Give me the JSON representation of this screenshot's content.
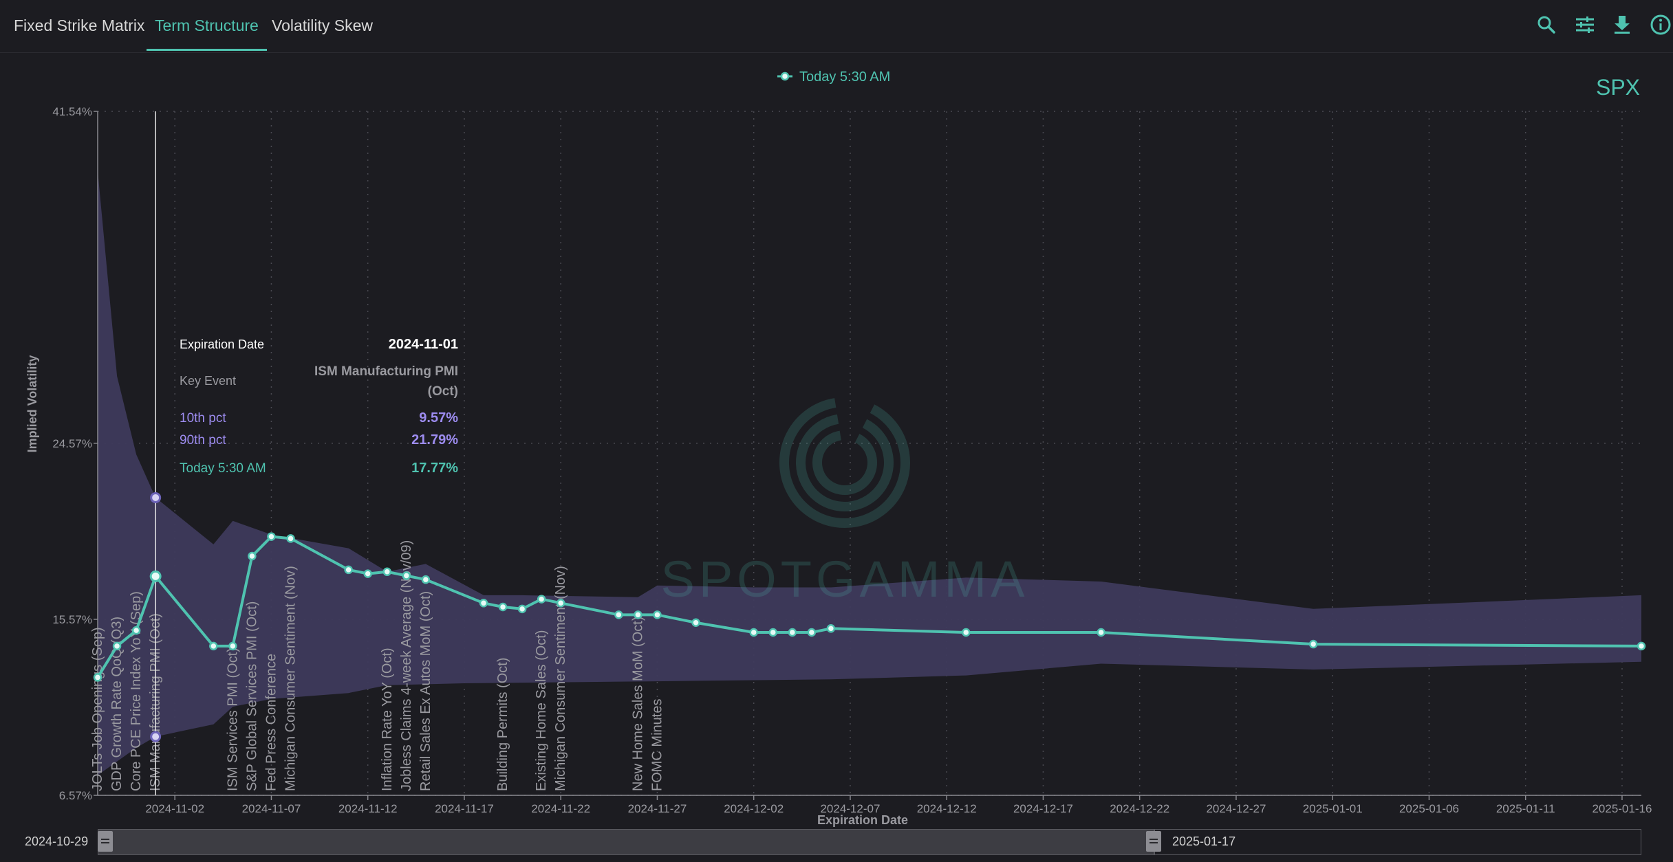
{
  "tabs": [
    {
      "label": "Fixed Strike Matrix",
      "active": false
    },
    {
      "label": "Term Structure",
      "active": true
    },
    {
      "label": "Volatility Skew",
      "active": false
    }
  ],
  "toolbar_icons": [
    "search-icon",
    "sliders-icon",
    "download-icon",
    "info-icon"
  ],
  "colors": {
    "accent": "#4fc3b0",
    "band": "#3e3a5c",
    "band_label": "#9d8cf0",
    "background": "#1c1c21"
  },
  "chart_data": {
    "type": "line",
    "ticker": "SPX",
    "legend": {
      "label": "Today 5:30 AM",
      "position": "top-center"
    },
    "xlabel": "Expiration Date",
    "ylabel": "Implied Volatility",
    "xlim": [
      "2024-10-29",
      "2025-01-17"
    ],
    "ylim": [
      6.57,
      41.54
    ],
    "y_ticks": [
      "41.54%",
      "24.57%",
      "15.57%",
      "6.57%"
    ],
    "x_ticks": [
      "2024-11-02",
      "2024-11-07",
      "2024-11-12",
      "2024-11-17",
      "2024-11-22",
      "2024-11-27",
      "2024-12-02",
      "2024-12-07",
      "2024-12-12",
      "2024-12-17",
      "2024-12-22",
      "2024-12-27",
      "2025-01-01",
      "2025-01-06",
      "2025-01-11",
      "2025-01-16"
    ],
    "grid": true,
    "series": [
      {
        "name": "Today 5:30 AM",
        "color": "#4fc3b0",
        "points": [
          [
            "2024-10-29",
            12.6
          ],
          [
            "2024-10-30",
            14.2
          ],
          [
            "2024-10-31",
            15.0
          ],
          [
            "2024-11-01",
            17.77
          ],
          [
            "2024-11-04",
            14.2
          ],
          [
            "2024-11-05",
            14.2
          ],
          [
            "2024-11-06",
            18.8
          ],
          [
            "2024-11-07",
            19.8
          ],
          [
            "2024-11-08",
            19.7
          ],
          [
            "2024-11-11",
            18.1
          ],
          [
            "2024-11-12",
            17.9
          ],
          [
            "2024-11-13",
            18.0
          ],
          [
            "2024-11-14",
            17.8
          ],
          [
            "2024-11-15",
            17.6
          ],
          [
            "2024-11-18",
            16.4
          ],
          [
            "2024-11-19",
            16.2
          ],
          [
            "2024-11-20",
            16.1
          ],
          [
            "2024-11-21",
            16.6
          ],
          [
            "2024-11-22",
            16.4
          ],
          [
            "2024-11-25",
            15.8
          ],
          [
            "2024-11-26",
            15.8
          ],
          [
            "2024-11-27",
            15.8
          ],
          [
            "2024-11-29",
            15.4
          ],
          [
            "2024-12-02",
            14.9
          ],
          [
            "2024-12-03",
            14.9
          ],
          [
            "2024-12-04",
            14.9
          ],
          [
            "2024-12-05",
            14.9
          ],
          [
            "2024-12-06",
            15.1
          ],
          [
            "2024-12-13",
            14.9
          ],
          [
            "2024-12-20",
            14.9
          ],
          [
            "2024-12-31",
            14.3
          ],
          [
            "2025-01-17",
            14.2
          ]
        ]
      },
      {
        "name": "90th pct",
        "color": "#3e3a5c",
        "points": [
          [
            "2024-10-29",
            38.5
          ],
          [
            "2024-10-30",
            28.0
          ],
          [
            "2024-10-31",
            24.0
          ],
          [
            "2024-11-01",
            21.79
          ],
          [
            "2024-11-04",
            19.4
          ],
          [
            "2024-11-05",
            20.6
          ],
          [
            "2024-11-07",
            19.9
          ],
          [
            "2024-11-11",
            19.2
          ],
          [
            "2024-11-13",
            18.0
          ],
          [
            "2024-11-15",
            18.4
          ],
          [
            "2024-11-18",
            16.8
          ],
          [
            "2024-11-20",
            16.8
          ],
          [
            "2024-11-26",
            16.7
          ],
          [
            "2024-11-27",
            17.3
          ],
          [
            "2024-12-02",
            17.2
          ],
          [
            "2024-12-06",
            17.2
          ],
          [
            "2024-12-13",
            17.7
          ],
          [
            "2024-12-20",
            17.5
          ],
          [
            "2024-12-31",
            16.1
          ],
          [
            "2025-01-17",
            16.8
          ]
        ]
      },
      {
        "name": "10th pct",
        "color": "#3e3a5c",
        "points": [
          [
            "2024-10-29",
            7.6
          ],
          [
            "2024-10-30",
            8.3
          ],
          [
            "2024-10-31",
            9.0
          ],
          [
            "2024-11-01",
            9.57
          ],
          [
            "2024-11-04",
            10.2
          ],
          [
            "2024-11-05",
            11.1
          ],
          [
            "2024-11-07",
            11.5
          ],
          [
            "2024-11-11",
            11.8
          ],
          [
            "2024-11-13",
            12.2
          ],
          [
            "2024-11-17",
            12.3
          ],
          [
            "2024-11-27",
            12.4
          ],
          [
            "2024-12-06",
            12.5
          ],
          [
            "2024-12-13",
            12.7
          ],
          [
            "2024-12-20",
            13.3
          ],
          [
            "2024-12-31",
            13.0
          ],
          [
            "2025-01-17",
            13.4
          ]
        ]
      }
    ],
    "events": [
      {
        "date": "2024-10-29",
        "label": "JOLTs Job Openings (Sep)"
      },
      {
        "date": "2024-10-30",
        "label": "GDP Growth Rate QoQ (Q3)"
      },
      {
        "date": "2024-10-31",
        "label": "Core PCE Price Index YoY (Sep)"
      },
      {
        "date": "2024-11-01",
        "label": "ISM Manufacturing PMI (Oct)"
      },
      {
        "date": "2024-11-05",
        "label": "ISM Services PMI (Oct)"
      },
      {
        "date": "2024-11-06",
        "label": "S&P Global Services PMI (Oct)"
      },
      {
        "date": "2024-11-07",
        "label": "Fed Press Conference"
      },
      {
        "date": "2024-11-08",
        "label": "Michigan Consumer Sentiment (Nov)"
      },
      {
        "date": "2024-11-13",
        "label": "Inflation Rate YoY (Oct)"
      },
      {
        "date": "2024-11-14",
        "label": "Jobless Claims 4-week Average (Nov/09)"
      },
      {
        "date": "2024-11-15",
        "label": "Retail Sales Ex Autos MoM (Oct)"
      },
      {
        "date": "2024-11-19",
        "label": "Building Permits (Oct)"
      },
      {
        "date": "2024-11-21",
        "label": "Existing Home Sales (Oct)"
      },
      {
        "date": "2024-11-22",
        "label": "Michigan Consumer Sentiment (Nov)"
      },
      {
        "date": "2024-11-26",
        "label": "New Home Sales MoM (Oct)"
      },
      {
        "date": "2024-11-27",
        "label": "FOMC Minutes"
      }
    ],
    "cursor_date": "2024-11-01",
    "tooltip": {
      "expiration_label": "Expiration Date",
      "expiration_value": "2024-11-01",
      "event_label": "Key Event",
      "event_value_line1": "ISM Manufacturing PMI",
      "event_value_line2": "(Oct)",
      "p10_label": "10th pct",
      "p10_value": "9.57%",
      "p90_label": "90th pct",
      "p90_value": "21.79%",
      "today_label": "Today 5:30 AM",
      "today_value": "17.77%"
    },
    "watermark": "SPOTGAMMA"
  },
  "range_slider": {
    "start_label": "2024-10-29",
    "end_label": "2025-01-17"
  }
}
